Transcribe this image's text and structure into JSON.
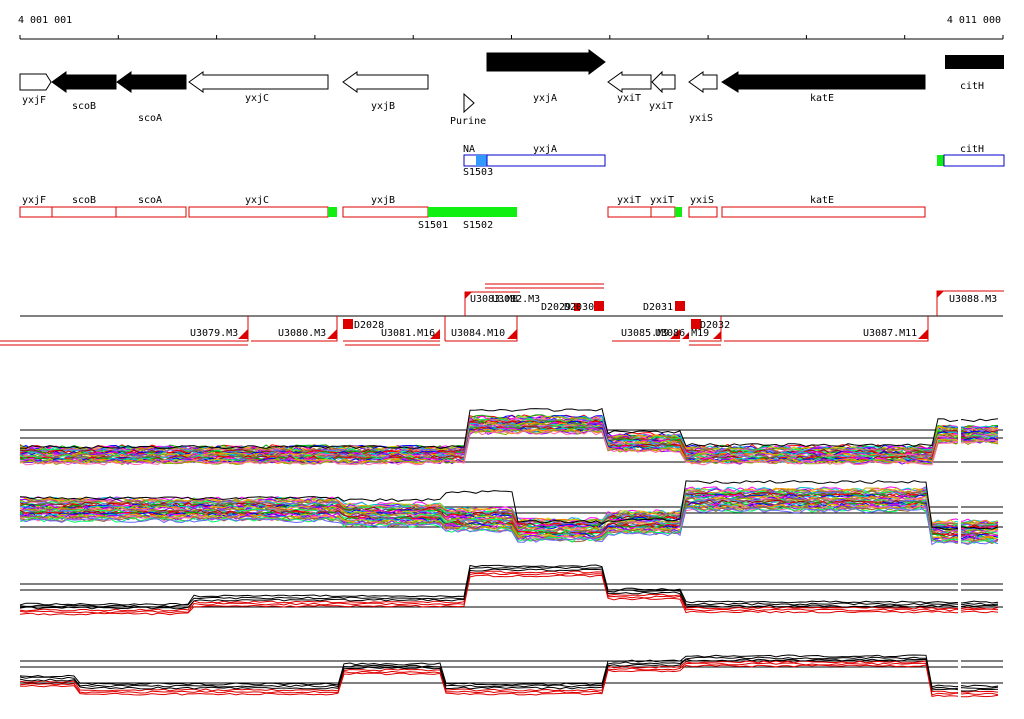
{
  "coords": {
    "start": "4 001 001",
    "end": "4 011 000"
  },
  "genes": [
    {
      "label": "yxjF",
      "dir": "right",
      "filled": false
    },
    {
      "label": "scoB",
      "dir": "left",
      "filled": true
    },
    {
      "label": "scoA",
      "dir": "left",
      "filled": true
    },
    {
      "label": "yxjC",
      "dir": "left",
      "filled": false
    },
    {
      "label": "yxjB",
      "dir": "left",
      "filled": false
    },
    {
      "label": "Purine",
      "dir": "right",
      "filled": false
    },
    {
      "label": "yxjA",
      "dir": "right",
      "filled": true
    },
    {
      "label": "yxiT",
      "dir": "left",
      "filled": false
    },
    {
      "label": "yxiT",
      "dir": "left",
      "filled": false
    },
    {
      "label": "yxiS",
      "dir": "left",
      "filled": false
    },
    {
      "label": "katE",
      "dir": "left",
      "filled": true
    },
    {
      "label": "citH",
      "dir": "right",
      "filled": true
    }
  ],
  "blue_features": [
    {
      "label": "NA"
    },
    {
      "label": "yxjA"
    },
    {
      "label": "S1503"
    },
    {
      "label": "citH"
    }
  ],
  "red_features": [
    {
      "label": "yxjF"
    },
    {
      "label": "scoB"
    },
    {
      "label": "scoA"
    },
    {
      "label": "yxjC"
    },
    {
      "label": "yxjB"
    },
    {
      "label": "S1501"
    },
    {
      "label": "S1502"
    },
    {
      "label": "yxiT"
    },
    {
      "label": "yxiT"
    },
    {
      "label": "yxiS"
    },
    {
      "label": "katE"
    }
  ],
  "transcripts_top": [
    {
      "label": "U3083.M8"
    },
    {
      "label": "U3082.M3"
    },
    {
      "label": "D2029"
    },
    {
      "label": "D2030"
    },
    {
      "label": "D2031"
    },
    {
      "label": "U3088.M3"
    }
  ],
  "transcripts_bottom": [
    {
      "label": "U3079.M3"
    },
    {
      "label": "U3080.M3"
    },
    {
      "label": "D2028"
    },
    {
      "label": "U3081.M16"
    },
    {
      "label": "U3084.M10"
    },
    {
      "label": "U3085.M9"
    },
    {
      "label": "U3086.M19"
    },
    {
      "label": "D2032"
    },
    {
      "label": "U3087.M11"
    }
  ],
  "colors": {
    "gene_fill": "#000000",
    "feature_red": "#dd0000",
    "feature_blue": "#0000cc",
    "sigma_green": "#11ee11",
    "blue_mark": "#3399ff",
    "profile_red": "#e00000",
    "profile_black": "#000000"
  },
  "profile_palette": [
    "#ff0000",
    "#00aa00",
    "#0000ff",
    "#ff00ff",
    "#00cccc",
    "#cccc00",
    "#ff8800",
    "#8800ff",
    "#88aa00",
    "#ff66aa",
    "#996633",
    "#00ff66",
    "#6666ff",
    "#aa0000",
    "#666666"
  ]
}
